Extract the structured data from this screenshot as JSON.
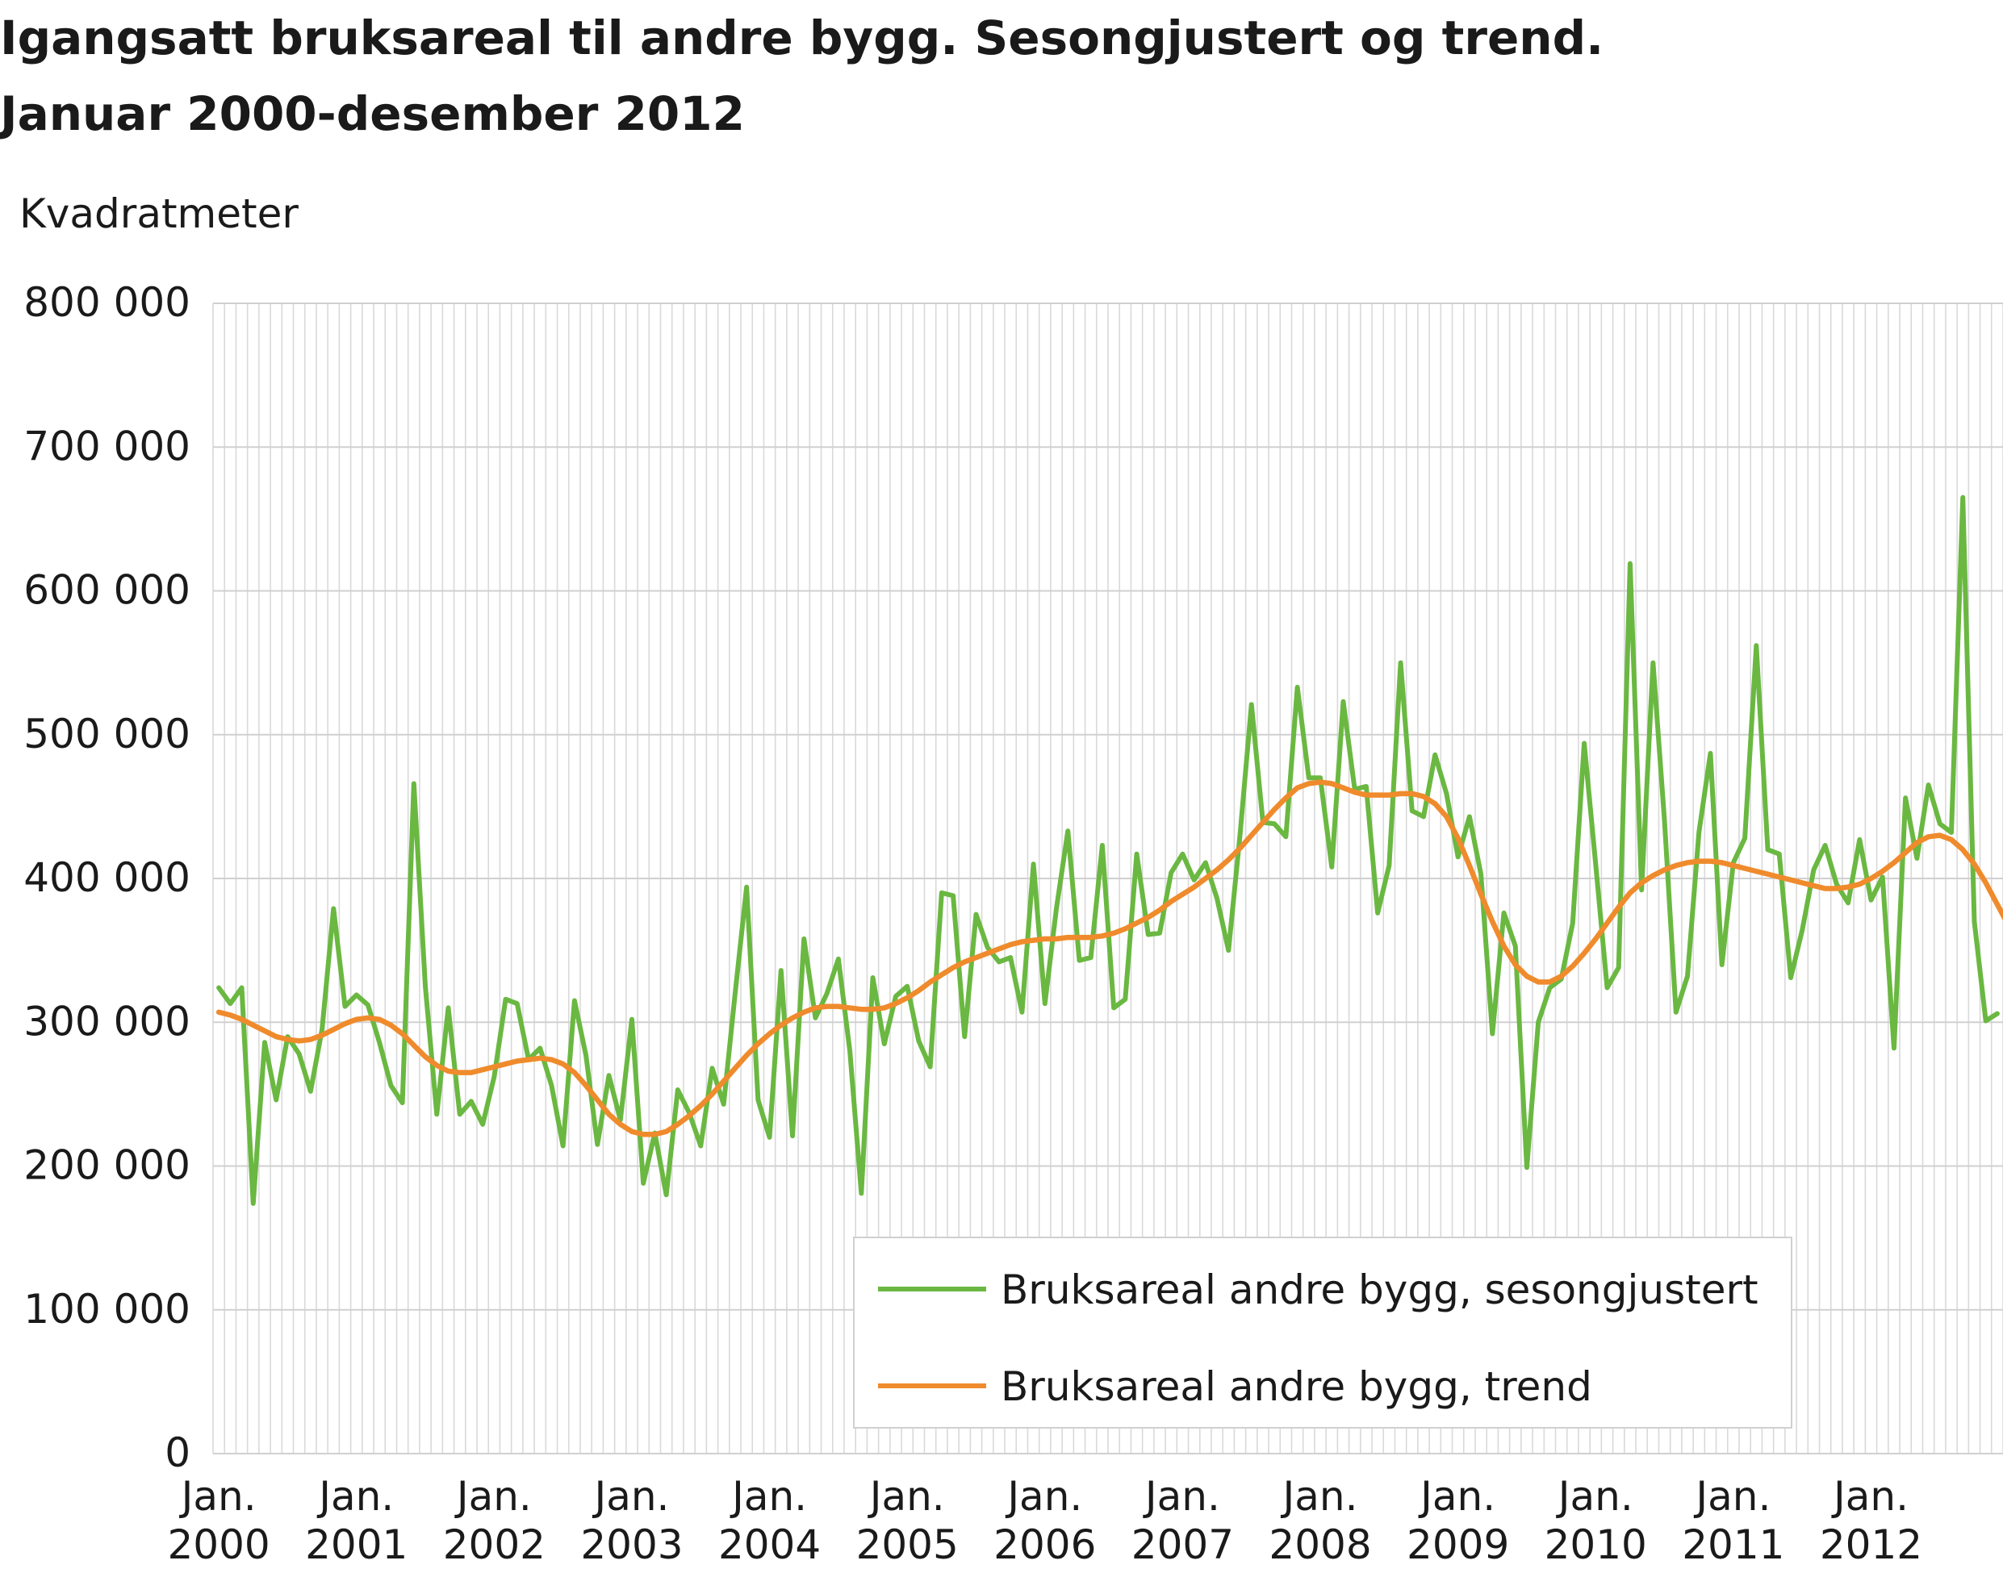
{
  "title_lines": [
    "Igangsatt bruksareal til andre bygg. Sesongjustert og trend.",
    "Januar 2000-desember 2012"
  ],
  "chart_data": {
    "type": "line",
    "title": "Igangsatt bruksareal til andre bygg. Sesongjustert og trend. Januar 2000-desember 2012",
    "ylabel": "Kvadratmeter",
    "xlabel": "",
    "ylim": [
      0,
      800000
    ],
    "yticks": [
      0,
      100000,
      200000,
      300000,
      400000,
      500000,
      600000,
      700000,
      800000
    ],
    "ytick_labels": [
      "0",
      "100 000",
      "200 000",
      "300 000",
      "400 000",
      "500 000",
      "600 000",
      "700 000",
      "800 000"
    ],
    "x_start": "2000-01",
    "x_end": "2012-12",
    "xtick_labels": [
      [
        "Jan.",
        "2000"
      ],
      [
        "Jan.",
        "2001"
      ],
      [
        "Jan.",
        "2002"
      ],
      [
        "Jan.",
        "2003"
      ],
      [
        "Jan.",
        "2004"
      ],
      [
        "Jan.",
        "2005"
      ],
      [
        "Jan.",
        "2006"
      ],
      [
        "Jan.",
        "2007"
      ],
      [
        "Jan.",
        "2008"
      ],
      [
        "Jan.",
        "2009"
      ],
      [
        "Jan.",
        "2010"
      ],
      [
        "Jan.",
        "2011"
      ],
      [
        "Jan.",
        "2012"
      ]
    ],
    "grid": true,
    "legend_position": "bottom-right",
    "series": [
      {
        "name": "Bruksareal andre bygg, sesongjustert",
        "color": "#6ab841",
        "values": [
          324000,
          313000,
          324000,
          174000,
          286000,
          246000,
          290000,
          278000,
          252000,
          295000,
          379000,
          311000,
          319000,
          312000,
          286000,
          256000,
          244000,
          466000,
          325000,
          236000,
          310000,
          236000,
          245000,
          229000,
          262000,
          316000,
          313000,
          274000,
          282000,
          256000,
          214000,
          315000,
          277000,
          215000,
          263000,
          232000,
          302000,
          188000,
          223000,
          180000,
          253000,
          237000,
          214000,
          268000,
          243000,
          320000,
          394000,
          246000,
          220000,
          336000,
          221000,
          358000,
          303000,
          320000,
          344000,
          280000,
          181000,
          331000,
          285000,
          318000,
          325000,
          287000,
          269000,
          390000,
          388000,
          290000,
          375000,
          352000,
          342000,
          345000,
          307000,
          410000,
          313000,
          379000,
          433000,
          343000,
          345000,
          423000,
          310000,
          316000,
          417000,
          361000,
          362000,
          404000,
          417000,
          399000,
          411000,
          386000,
          350000,
          430000,
          521000,
          439000,
          438000,
          429000,
          533000,
          470000,
          470000,
          408000,
          523000,
          462000,
          464000,
          376000,
          409000,
          550000,
          447000,
          443000,
          486000,
          459000,
          415000,
          443000,
          403000,
          292000,
          376000,
          353000,
          199000,
          300000,
          324000,
          330000,
          369000,
          494000,
          410000,
          324000,
          338000,
          619000,
          392000,
          550000,
          440000,
          307000,
          332000,
          432000,
          487000,
          340000,
          411000,
          428000,
          562000,
          420000,
          417000,
          331000,
          364000,
          406000,
          423000,
          396000,
          383000,
          427000,
          385000,
          401000,
          282000,
          456000,
          414000,
          465000,
          438000,
          432000,
          665000,
          370000,
          301000,
          306000
        ]
      },
      {
        "name": "Bruksareal andre bygg, trend",
        "color": "#ef8b2c",
        "values": [
          307000,
          305000,
          302000,
          298000,
          294000,
          290000,
          288000,
          287000,
          288000,
          291000,
          295000,
          299000,
          302000,
          303000,
          302000,
          298000,
          292000,
          284000,
          276000,
          270000,
          266000,
          265000,
          265000,
          267000,
          269000,
          271000,
          273000,
          274000,
          275000,
          274000,
          271000,
          265000,
          256000,
          246000,
          236000,
          229000,
          224000,
          222000,
          222000,
          224000,
          229000,
          235000,
          242000,
          250000,
          259000,
          268000,
          277000,
          285000,
          292000,
          298000,
          303000,
          307000,
          310000,
          311000,
          311000,
          310000,
          309000,
          309000,
          310000,
          313000,
          317000,
          322000,
          328000,
          333000,
          338000,
          342000,
          345000,
          348000,
          351000,
          354000,
          356000,
          357000,
          358000,
          358000,
          359000,
          359000,
          359000,
          360000,
          362000,
          365000,
          369000,
          373000,
          378000,
          384000,
          389000,
          394000,
          400000,
          406000,
          413000,
          421000,
          430000,
          439000,
          448000,
          456000,
          463000,
          466000,
          467000,
          466000,
          463000,
          460000,
          458000,
          458000,
          458000,
          459000,
          459000,
          457000,
          452000,
          443000,
          428000,
          409000,
          389000,
          370000,
          353000,
          340000,
          332000,
          328000,
          328000,
          332000,
          339000,
          348000,
          358000,
          369000,
          380000,
          390000,
          397000,
          402000,
          406000,
          409000,
          411000,
          412000,
          412000,
          411000,
          409000,
          407000,
          405000,
          403000,
          401000,
          399000,
          397000,
          395000,
          393000,
          393000,
          394000,
          396000,
          400000,
          405000,
          411000,
          418000,
          425000,
          429000,
          430000,
          427000,
          420000,
          410000,
          397000,
          382000,
          367000,
          354000
        ]
      }
    ]
  }
}
